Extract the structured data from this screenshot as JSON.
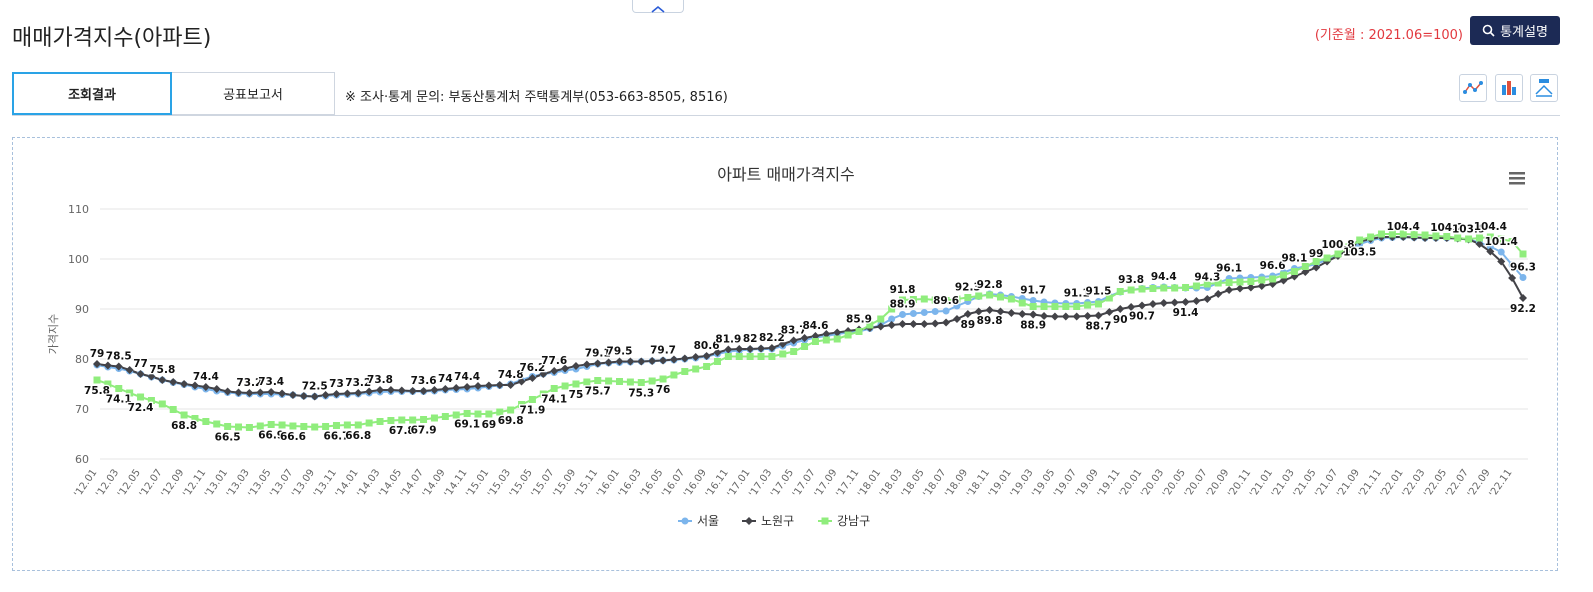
{
  "header": {
    "title": "매매가격지수(아파트)",
    "base_note": "(기준월 : 2021.06=100)",
    "button": "통계설명"
  },
  "tabs": [
    "조회결과",
    "공표보고서"
  ],
  "notice": "※ 조사·통계 문의: 부동산통계처 주택통계부(053-663-8505, 8516)",
  "chart_data": {
    "type": "line",
    "title": "아파트 매매가격지수",
    "y_label": "가격지수",
    "categories": [
      "'12.01",
      null,
      "'12.03",
      null,
      "'12.05",
      null,
      "'12.07",
      null,
      "'12.09",
      null,
      "'12.11",
      null,
      "'13.01",
      null,
      "'13.03",
      null,
      "'13.05",
      null,
      "'13.07",
      null,
      "'13.09",
      null,
      "'13.11",
      null,
      "'14.01",
      null,
      "'14.03",
      null,
      "'14.05",
      null,
      "'14.07",
      null,
      "'14.09",
      null,
      "'14.11",
      null,
      "'15.01",
      null,
      "'15.03",
      null,
      "'15.05",
      null,
      "'15.07",
      null,
      "'15.09",
      null,
      "'15.11",
      null,
      "'16.01",
      null,
      "'16.03",
      null,
      "'16.05",
      null,
      "'16.07",
      null,
      "'16.09",
      null,
      "'16.11",
      null,
      "'17.01",
      null,
      "'17.03",
      null,
      "'17.05",
      null,
      "'17.07",
      null,
      "'17.09",
      null,
      "'17.11",
      null,
      "'18.01",
      null,
      "'18.03",
      null,
      "'18.05",
      null,
      "'18.07",
      null,
      "'18.09",
      null,
      "'18.11",
      null,
      "'19.01",
      null,
      "'19.03",
      null,
      "'19.05",
      null,
      "'19.07",
      null,
      "'19.09",
      null,
      "'19.11",
      null,
      "'20.01",
      null,
      "'20.03",
      null,
      "'20.05",
      null,
      "'20.07",
      null,
      "'20.09",
      null,
      "'20.11",
      null,
      "'21.01",
      null,
      "'21.03",
      null,
      "'21.05",
      null,
      "'21.07",
      null,
      "'21.09",
      null,
      "'21.11",
      null,
      "'22.01",
      null,
      "'22.03",
      null,
      "'22.05",
      null,
      "'22.07",
      null,
      "'22.09",
      null,
      "'22.11",
      null
    ],
    "series": [
      {
        "name": "서울",
        "color": "#7cb5ec",
        "marker": "circle",
        "labels_above": true,
        "data_labels_at": [
          74,
          78,
          86,
          90,
          92,
          95,
          98,
          102,
          104,
          108,
          110,
          112,
          114,
          120,
          124,
          126,
          129,
          131
        ],
        "values": [
          78.8,
          78.4,
          78.1,
          77.6,
          77,
          76.4,
          75.8,
          75.3,
          74.9,
          74.4,
          74,
          73.6,
          73.3,
          73.1,
          73,
          73,
          73,
          72.9,
          72.8,
          72.6,
          72.5,
          72.6,
          72.8,
          72.9,
          73,
          73.2,
          73.4,
          73.5,
          73.5,
          73.5,
          73.5,
          73.6,
          73.8,
          73.9,
          74,
          74.2,
          74.5,
          74.7,
          75,
          75.8,
          76.5,
          77,
          77.3,
          77.7,
          78,
          78.5,
          79,
          79.2,
          79.3,
          79.4,
          79.5,
          79.6,
          79.7,
          79.8,
          80,
          80.2,
          80.5,
          81,
          81.5,
          81.7,
          81.9,
          82,
          82,
          82.6,
          83.2,
          83.8,
          84.3,
          84.6,
          85,
          85.3,
          85.5,
          86.1,
          86.8,
          88,
          88.9,
          89.1,
          89.3,
          89.5,
          89.6,
          90.6,
          91.5,
          92.5,
          93,
          92.8,
          92.5,
          92.1,
          91.7,
          91.4,
          91.2,
          91.1,
          91.1,
          91.3,
          91.5,
          92.6,
          93.4,
          93.8,
          94.1,
          94.3,
          94.4,
          94.3,
          94.2,
          94.2,
          94.3,
          95.2,
          96.1,
          96.2,
          96.3,
          96.4,
          96.6,
          97.3,
          98.1,
          98.5,
          99,
          99.9,
          100.8,
          102,
          103,
          103.7,
          104.2,
          104.3,
          104.4,
          104.3,
          104.2,
          104.2,
          104.2,
          104.1,
          103.9,
          103.3,
          102.5,
          101.4,
          98.8,
          96.3
        ]
      },
      {
        "name": "노원구",
        "color": "#434348",
        "marker": "diamond",
        "labels_above": false,
        "data_labels_at": [
          0,
          2,
          4,
          6,
          10,
          14,
          16,
          20,
          22,
          24,
          26,
          30,
          32,
          34,
          38,
          40,
          42,
          46,
          48,
          52,
          56,
          58,
          60,
          62,
          64,
          66,
          70,
          80,
          82,
          86,
          92,
          94,
          96,
          100,
          116,
          131
        ],
        "values": [
          79,
          78.7,
          78.5,
          77.8,
          77,
          76.5,
          75.8,
          75.4,
          75,
          74.7,
          74.4,
          74,
          73.5,
          73.3,
          73.2,
          73.3,
          73.4,
          73.1,
          72.8,
          72.6,
          72.5,
          72.8,
          73,
          73.1,
          73.2,
          73.5,
          73.8,
          73.8,
          73.7,
          73.6,
          73.6,
          73.8,
          74,
          74.2,
          74.4,
          74.6,
          74.7,
          74.8,
          74.8,
          75.5,
          76.2,
          77,
          77.6,
          78.1,
          78.6,
          78.9,
          79.1,
          79.3,
          79.5,
          79.5,
          79.5,
          79.6,
          79.7,
          79.9,
          80.1,
          80.4,
          80.6,
          81.3,
          81.9,
          82,
          82,
          82.1,
          82.2,
          83,
          83.7,
          84.2,
          84.6,
          85,
          85.3,
          85.6,
          85.9,
          86.2,
          86.5,
          86.8,
          87,
          87,
          87,
          87.1,
          87.3,
          88,
          89,
          89.5,
          89.8,
          89.5,
          89.2,
          89,
          88.9,
          88.6,
          88.5,
          88.5,
          88.5,
          88.6,
          88.7,
          89.4,
          90,
          90.4,
          90.7,
          91,
          91.2,
          91.3,
          91.4,
          91.6,
          92,
          93,
          93.8,
          94.1,
          94.3,
          94.6,
          95,
          95.7,
          96.5,
          97.4,
          98.3,
          99.5,
          100.6,
          102,
          103.5,
          104,
          104.4,
          104.4,
          104.4,
          104.3,
          104.2,
          104.2,
          104.2,
          104.1,
          103.9,
          103,
          101.5,
          99.5,
          96.2,
          92.2
        ]
      },
      {
        "name": "강남구",
        "color": "#90ed7d",
        "marker": "square",
        "labels_above": false,
        "data_labels_at": [
          0,
          2,
          4,
          8,
          12,
          16,
          18,
          22,
          24,
          28,
          30,
          34,
          36,
          38,
          40,
          42,
          44,
          46,
          50,
          52,
          74,
          80,
          82,
          128
        ],
        "values": [
          75.8,
          75,
          74.1,
          73.2,
          72.4,
          71.7,
          71,
          69.9,
          68.8,
          68.1,
          67.5,
          67,
          66.5,
          66.4,
          66.3,
          66.6,
          66.9,
          66.8,
          66.6,
          66.5,
          66.4,
          66.5,
          66.7,
          66.8,
          66.8,
          67.2,
          67.5,
          67.7,
          67.8,
          67.8,
          67.9,
          68.2,
          68.5,
          68.8,
          69.1,
          69,
          69,
          69.4,
          69.8,
          70.9,
          71.9,
          73,
          74.1,
          74.6,
          75,
          75.4,
          75.7,
          75.6,
          75.5,
          75.4,
          75.3,
          75.6,
          76,
          76.8,
          77.5,
          78,
          78.5,
          79.5,
          80.5,
          80.5,
          80.5,
          80.5,
          80.5,
          81,
          81.5,
          82.5,
          83.5,
          83.8,
          84,
          84.8,
          85.5,
          86.8,
          88,
          90,
          91.8,
          91.9,
          92,
          91.8,
          91.7,
          92,
          92.3,
          92.6,
          92.8,
          92.4,
          92,
          91.2,
          90.5,
          90.5,
          90.5,
          90.5,
          90.5,
          90.8,
          91,
          92.2,
          93.5,
          93.8,
          94,
          94.1,
          94.2,
          94.2,
          94.3,
          94.6,
          95,
          95.2,
          95.3,
          95.4,
          95.5,
          95.8,
          96,
          96.8,
          97.5,
          98.5,
          99.5,
          100.2,
          101,
          102.4,
          103.8,
          104.4,
          105,
          105,
          105,
          104.9,
          104.8,
          104.6,
          104.5,
          104.2,
          104,
          104.2,
          104.4,
          104,
          103.5,
          101
        ]
      }
    ],
    "ylim": [
      60,
      110
    ],
    "yticks": [
      60,
      70,
      80,
      90,
      100,
      110
    ],
    "grid": true,
    "legend": "bottom"
  }
}
